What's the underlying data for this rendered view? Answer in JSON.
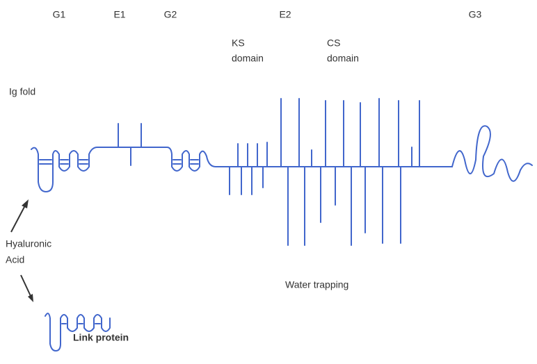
{
  "domains": [
    "G1",
    "E1",
    "G2",
    "E2",
    "G3"
  ],
  "ks_domain": [
    "KS",
    "domain"
  ],
  "cs_domain": [
    "CS",
    "domain"
  ],
  "ig_fold": "Ig fold",
  "hyaluronic_acid": [
    "Hyaluronic",
    "Acid"
  ],
  "water_trapping": "Water trapping",
  "link_protein": "Link protein"
}
